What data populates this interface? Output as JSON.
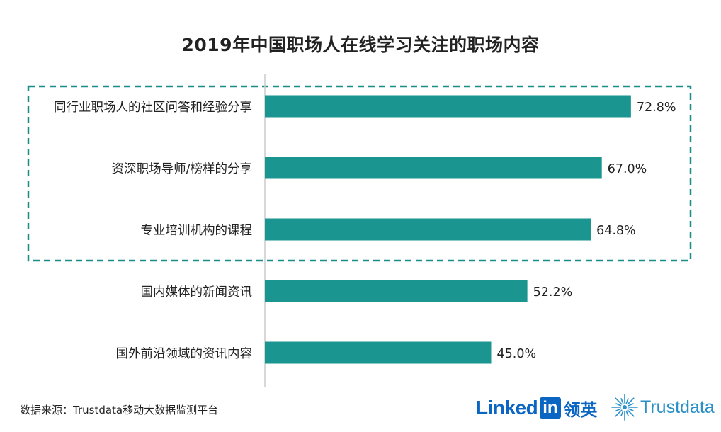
{
  "title": "2019年中国职场人在线学习关注的职场内容",
  "source": "数据来源：Trustdata移动大数据监测平台",
  "logos": {
    "linkedin_text": "Linked",
    "linkedin_box": "in",
    "linkedin_cn": "领英",
    "trustdata_text": "Trustdata"
  },
  "colors": {
    "bar": "#1a9590",
    "highlight_border": "#1a8f8a",
    "axis": "#cccccc",
    "linkedin": "#0a66c2",
    "trustdata": "#2a8fc7"
  },
  "chart_data": {
    "type": "bar",
    "orientation": "horizontal",
    "title": "2019年中国职场人在线学习关注的职场内容",
    "categories": [
      "同行业职场人的社区问答和经验分享",
      "资深职场导师/榜样的分享",
      "专业培训机构的课程",
      "国内媒体的新闻资讯",
      "国外前沿领域的资讯内容"
    ],
    "values": [
      72.8,
      67.0,
      64.8,
      52.2,
      45.0
    ],
    "data_labels": [
      "72.8%",
      "67.0%",
      "64.8%",
      "52.2%",
      "45.0%"
    ],
    "unit": "%",
    "xlim": [
      0,
      100
    ],
    "grid": false,
    "legend": "none",
    "highlighted_categories": [
      0,
      1,
      2
    ]
  }
}
